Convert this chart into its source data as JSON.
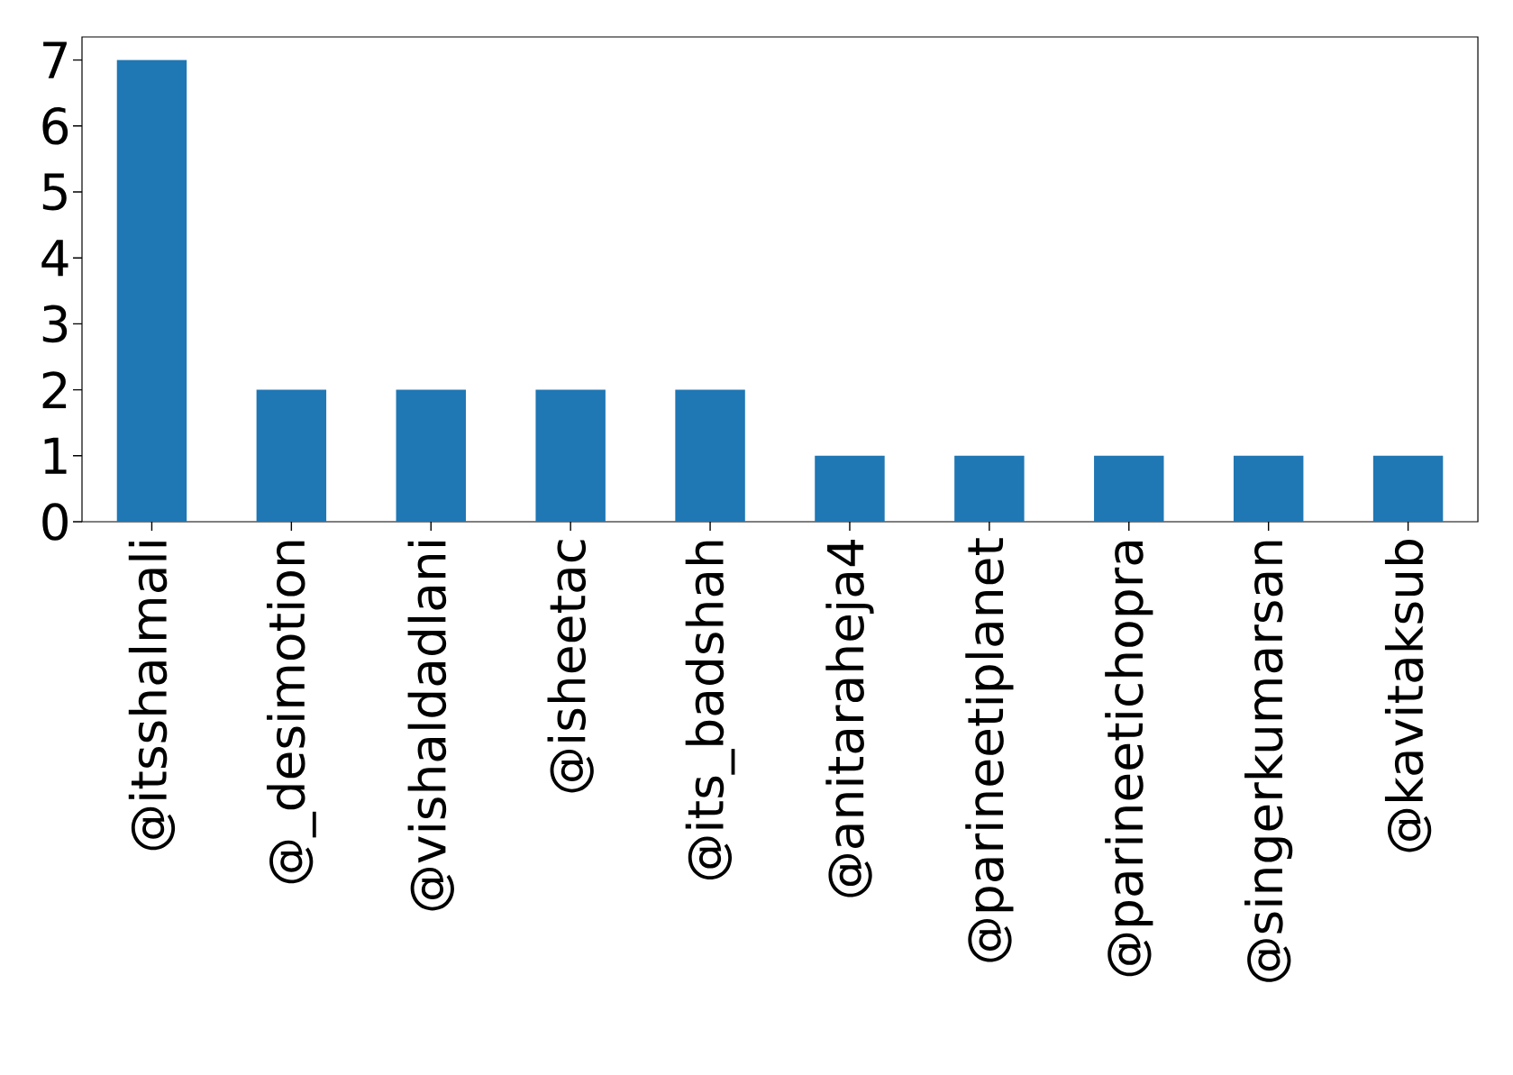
{
  "chart_data": {
    "type": "bar",
    "categories": [
      "@itsshalmali",
      "@_desimotion",
      "@vishaldadlani",
      "@isheetac",
      "@its_badshah",
      "@anitaraheja4",
      "@parineetiplanet",
      "@parineetichopra",
      "@singerkumarsan",
      "@kavitaksub"
    ],
    "values": [
      7,
      2,
      2,
      2,
      2,
      1,
      1,
      1,
      1,
      1
    ],
    "color": "#1f77b4",
    "ylim": [
      0,
      7.35
    ],
    "yticks": [
      0,
      1,
      2,
      3,
      4,
      5,
      6,
      7
    ],
    "grid": false
  }
}
